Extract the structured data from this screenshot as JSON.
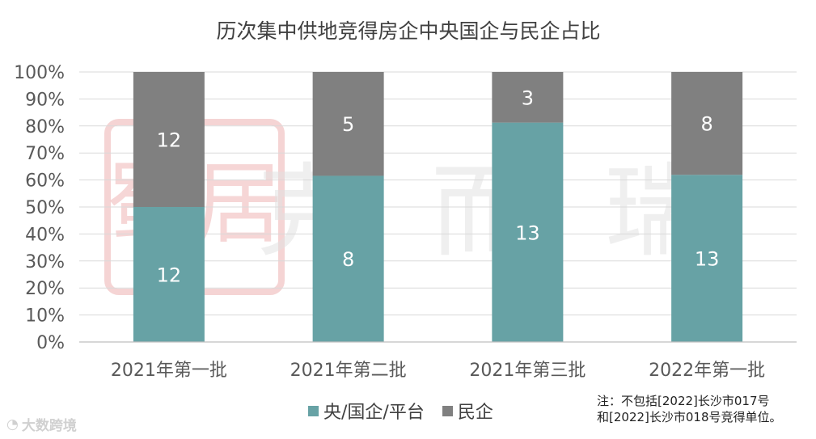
{
  "chart_data": {
    "type": "bar",
    "stacked": true,
    "percent": true,
    "title": "历次集中供地竞得房企中央国企与民企占比",
    "categories": [
      "2021年第一批",
      "2021年第二批",
      "2021年第三批",
      "2022年第一批"
    ],
    "series": [
      {
        "name": "央/国企/平台",
        "color": "#67a2a5",
        "values": [
          12,
          8,
          13,
          13
        ]
      },
      {
        "name": "民企",
        "color": "#808080",
        "values": [
          12,
          5,
          3,
          8
        ]
      }
    ],
    "y_tick_labels": [
      "0%",
      "10%",
      "20%",
      "30%",
      "40%",
      "50%",
      "60%",
      "70%",
      "80%",
      "90%",
      "100%"
    ],
    "ylim": [
      0,
      100
    ],
    "grid": true,
    "legend": "bottom"
  },
  "note": {
    "line1": "注：不包括[2022]长沙市017号",
    "line2": "和[2022]长沙市018号竞得单位。"
  },
  "brand": {
    "icon": "weibo-logo-icon",
    "text": "大数跨境"
  },
  "watermark": {
    "seal_text": "蜀居",
    "text": "克而瑞"
  }
}
